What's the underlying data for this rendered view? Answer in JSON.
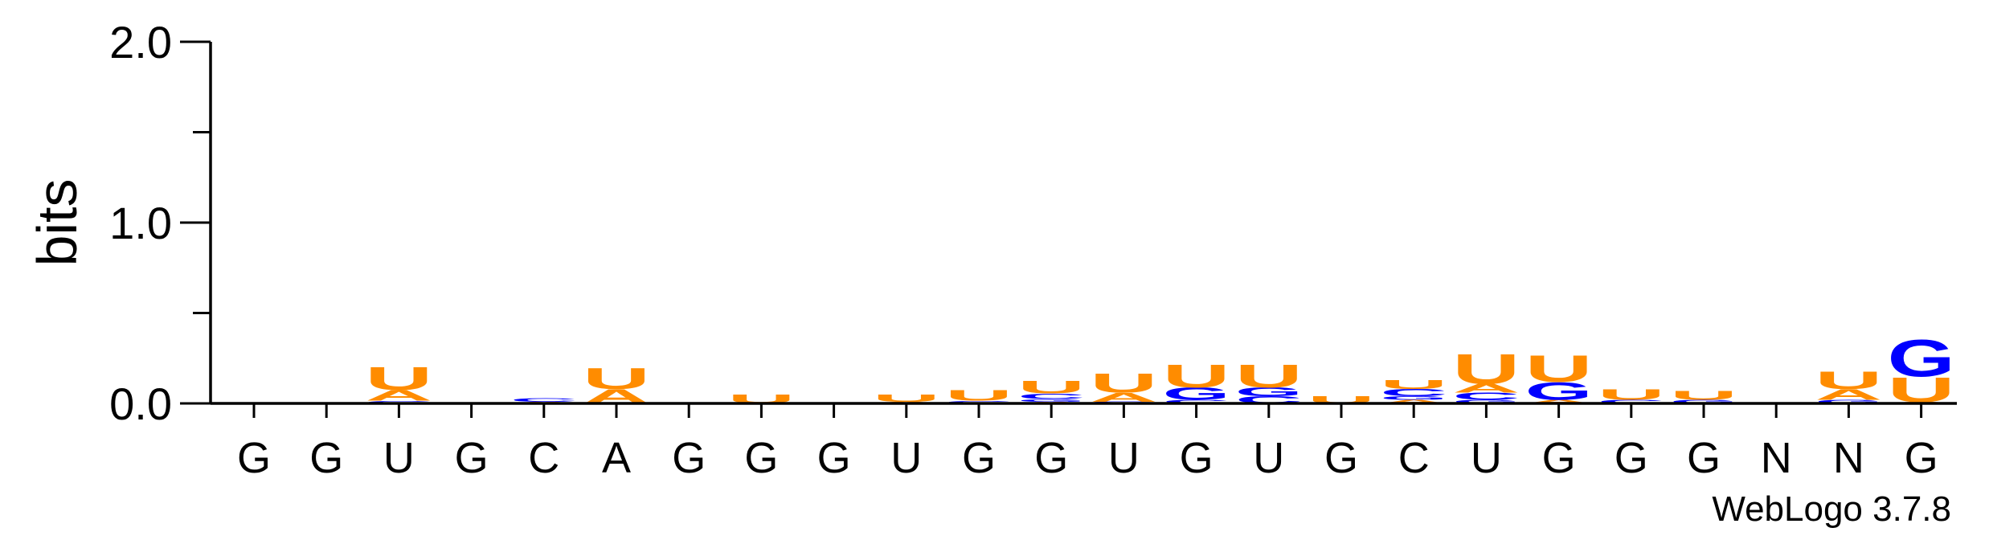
{
  "chart_data": {
    "type": "sequence-logo",
    "ylabel": "bits",
    "ylim": [
      0,
      2.0
    ],
    "y_ticks": [
      "0.0",
      "1.0",
      "2.0"
    ],
    "positions": [
      "G",
      "G",
      "U",
      "G",
      "C",
      "A",
      "G",
      "G",
      "G",
      "U",
      "G",
      "G",
      "U",
      "G",
      "U",
      "G",
      "C",
      "U",
      "G",
      "G",
      "G",
      "N",
      "N",
      "G"
    ],
    "colors": {
      "U": "#FF8C00",
      "A": "#FF8C00",
      "G": "#0000FF",
      "C": "#0000FF"
    },
    "stacks": [
      [],
      [],
      [
        {
          "l": "C",
          "h": 0.015
        },
        {
          "l": "A",
          "h": 0.06
        },
        {
          "l": "U",
          "h": 0.13
        }
      ],
      [],
      [
        {
          "l": "A",
          "h": 0.01
        },
        {
          "l": "C",
          "h": 0.02
        }
      ],
      [
        {
          "l": "A",
          "h": 0.08
        },
        {
          "l": "U",
          "h": 0.12
        }
      ],
      [],
      [
        {
          "l": "U",
          "h": 0.05
        }
      ],
      [],
      [
        {
          "l": "A",
          "h": 0.01
        },
        {
          "l": "U",
          "h": 0.04
        }
      ],
      [
        {
          "l": "C",
          "h": 0.015
        },
        {
          "l": "U",
          "h": 0.06
        }
      ],
      [
        {
          "l": "A",
          "h": 0.01
        },
        {
          "l": "G",
          "h": 0.015
        },
        {
          "l": "C",
          "h": 0.03
        },
        {
          "l": "U",
          "h": 0.07
        }
      ],
      [
        {
          "l": "G",
          "h": 0.01
        },
        {
          "l": "A",
          "h": 0.05
        },
        {
          "l": "U",
          "h": 0.11
        }
      ],
      [
        {
          "l": "C",
          "h": 0.02
        },
        {
          "l": "G",
          "h": 0.07
        },
        {
          "l": "U",
          "h": 0.13
        }
      ],
      [
        {
          "l": "C",
          "h": 0.04
        },
        {
          "l": "G",
          "h": 0.05
        },
        {
          "l": "U",
          "h": 0.13
        }
      ],
      [
        {
          "l": "U",
          "h": 0.04
        }
      ],
      [
        {
          "l": "A",
          "h": 0.02
        },
        {
          "l": "G",
          "h": 0.02
        },
        {
          "l": "C",
          "h": 0.04
        },
        {
          "l": "U",
          "h": 0.05
        }
      ],
      [
        {
          "l": "G",
          "h": 0.02
        },
        {
          "l": "C",
          "h": 0.04
        },
        {
          "l": "A",
          "h": 0.05
        },
        {
          "l": "U",
          "h": 0.17
        }
      ],
      [
        {
          "l": "A",
          "h": 0.02
        },
        {
          "l": "G",
          "h": 0.1
        },
        {
          "l": "U",
          "h": 0.15
        }
      ],
      [
        {
          "l": "C",
          "h": 0.02
        },
        {
          "l": "U",
          "h": 0.06
        }
      ],
      [
        {
          "l": "G",
          "h": 0.02
        },
        {
          "l": "U",
          "h": 0.05
        }
      ],
      [],
      [
        {
          "l": "G",
          "h": 0.02
        },
        {
          "l": "A",
          "h": 0.06
        },
        {
          "l": "U",
          "h": 0.1
        }
      ],
      [
        {
          "l": "A",
          "h": 0.01
        },
        {
          "l": "U",
          "h": 0.14
        },
        {
          "l": "G",
          "h": 0.21
        }
      ]
    ]
  },
  "footer": {
    "credit": "WebLogo 3.7.8"
  }
}
